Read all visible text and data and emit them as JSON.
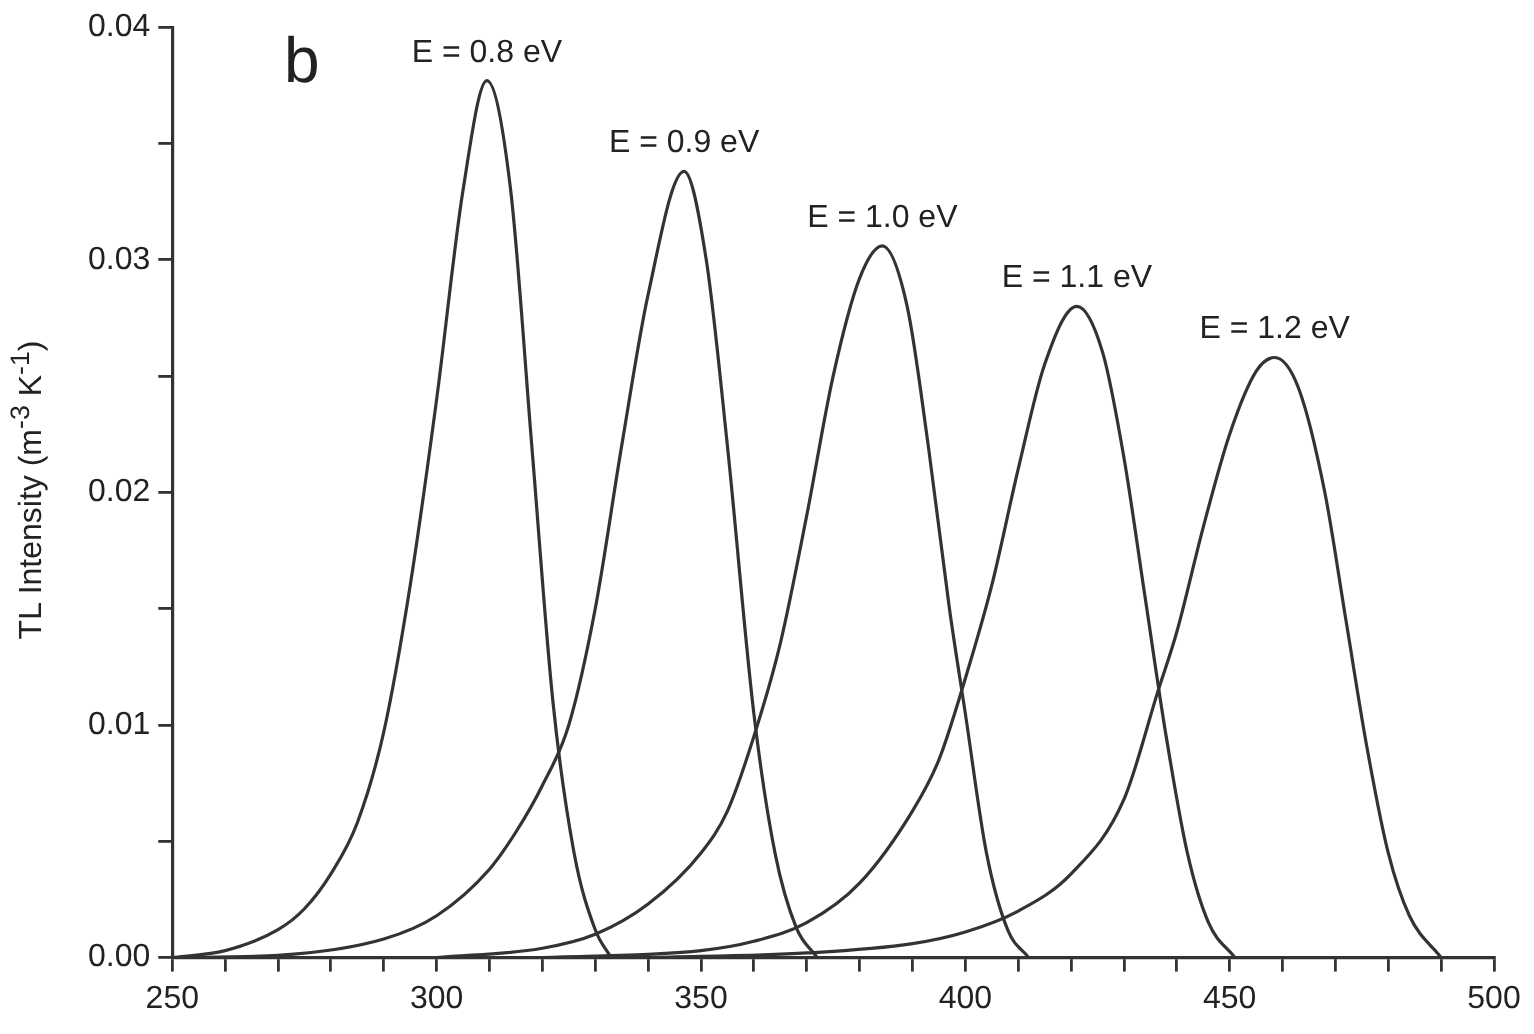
{
  "chart_data": {
    "type": "line",
    "ylabel": "TL Intensity (m$^{-3}$ K$^{-1}$)",
    "annotations": [
      "b"
    ],
    "xlim": [
      250,
      500
    ],
    "ylim": [
      0,
      0.04
    ],
    "xticks": [
      250,
      {
        "value": 260,
        "label": null
      },
      {
        "value": 270,
        "label": null
      },
      {
        "value": 280,
        "label": null
      },
      {
        "value": 290,
        "label": null
      },
      300,
      {
        "value": 310,
        "label": null
      },
      {
        "value": 320,
        "label": null
      },
      {
        "value": 330,
        "label": null
      },
      {
        "value": 340,
        "label": null
      },
      350,
      {
        "value": 360,
        "label": null
      },
      {
        "value": 370,
        "label": null
      },
      {
        "value": 380,
        "label": null
      },
      {
        "value": 390,
        "label": null
      },
      400,
      {
        "value": 410,
        "label": null
      },
      {
        "value": 420,
        "label": null
      },
      {
        "value": 430,
        "label": null
      },
      {
        "value": 440,
        "label": null
      },
      450,
      {
        "value": 460,
        "label": null
      },
      {
        "value": 470,
        "label": null
      },
      {
        "value": 480,
        "label": null
      },
      {
        "value": 490,
        "label": null
      },
      500
    ],
    "yticks": [
      {
        "value": 0,
        "label": "0.00"
      },
      {
        "value": 0.005,
        "label": null
      },
      {
        "value": 0.01,
        "label": "0.01"
      },
      {
        "value": 0.015,
        "label": null
      },
      {
        "value": 0.02,
        "label": "0.02"
      },
      {
        "value": 0.025,
        "label": null
      },
      {
        "value": 0.03,
        "label": "0.03"
      },
      {
        "value": 0.035,
        "label": null
      },
      {
        "value": 0.04,
        "label": "0.04"
      }
    ],
    "grid": false,
    "legend": false,
    "marker": "none",
    "line_style": "solid",
    "series": [
      {
        "name": "E = 0.8 eV",
        "color": "#333333",
        "x": [
          250,
          260,
          270,
          275,
          280,
          285,
          290,
          295,
          300,
          305,
          309.5,
          314,
          318,
          322,
          326,
          330,
          333
        ],
        "values": [
          0,
          0.0003,
          0.0012,
          0.0021,
          0.0036,
          0.0058,
          0.0097,
          0.016,
          0.024,
          0.033,
          0.0377,
          0.033,
          0.022,
          0.011,
          0.0045,
          0.0012,
          0
        ]
      },
      {
        "name": "E = 0.9 eV",
        "color": "#333333",
        "x": [
          250,
          270,
          290,
          300,
          310,
          315,
          320,
          325,
          330,
          335,
          340,
          346.8,
          351,
          355,
          360,
          364,
          368,
          372
        ],
        "values": [
          0,
          0.0001,
          0.0008,
          0.0018,
          0.0038,
          0.0054,
          0.0074,
          0.01,
          0.015,
          0.022,
          0.0285,
          0.0338,
          0.03,
          0.022,
          0.0105,
          0.0045,
          0.0013,
          0
        ]
      },
      {
        "name": "E = 1.0 eV",
        "color": "#333333",
        "x": [
          300,
          320,
          330,
          340,
          350,
          355,
          360,
          365,
          370,
          375,
          380,
          384.3,
          389,
          393,
          397,
          400,
          404,
          408,
          412
        ],
        "values": [
          0,
          0.0004,
          0.001,
          0.0023,
          0.0045,
          0.0063,
          0.0095,
          0.0135,
          0.019,
          0.025,
          0.0292,
          0.0306,
          0.028,
          0.022,
          0.015,
          0.0105,
          0.0045,
          0.0012,
          0
        ]
      },
      {
        "name": "E = 1.1 eV",
        "color": "#333333",
        "x": [
          320,
          350,
          360,
          370,
          380,
          390,
          395,
          400,
          405,
          410,
          415,
          421.1,
          426,
          430,
          434,
          438,
          442,
          446,
          451
        ],
        "values": [
          0,
          0.0003,
          0.0007,
          0.0015,
          0.0032,
          0.0063,
          0.0085,
          0.012,
          0.016,
          0.021,
          0.0255,
          0.028,
          0.026,
          0.0215,
          0.0155,
          0.0095,
          0.0045,
          0.0015,
          0
        ]
      },
      {
        "name": "E = 1.2 eV",
        "color": "#333333",
        "x": [
          340,
          370,
          390,
          400,
          410,
          420,
          430,
          436.5,
          440,
          445,
          450,
          455,
          458.5,
          463,
          468,
          472,
          476,
          480,
          484,
          490
        ],
        "values": [
          0,
          0.0002,
          0.0006,
          0.0011,
          0.002,
          0.0036,
          0.0068,
          0.0115,
          0.014,
          0.0185,
          0.0225,
          0.0252,
          0.0258,
          0.0245,
          0.02,
          0.0145,
          0.009,
          0.0045,
          0.0018,
          0
        ]
      }
    ]
  }
}
